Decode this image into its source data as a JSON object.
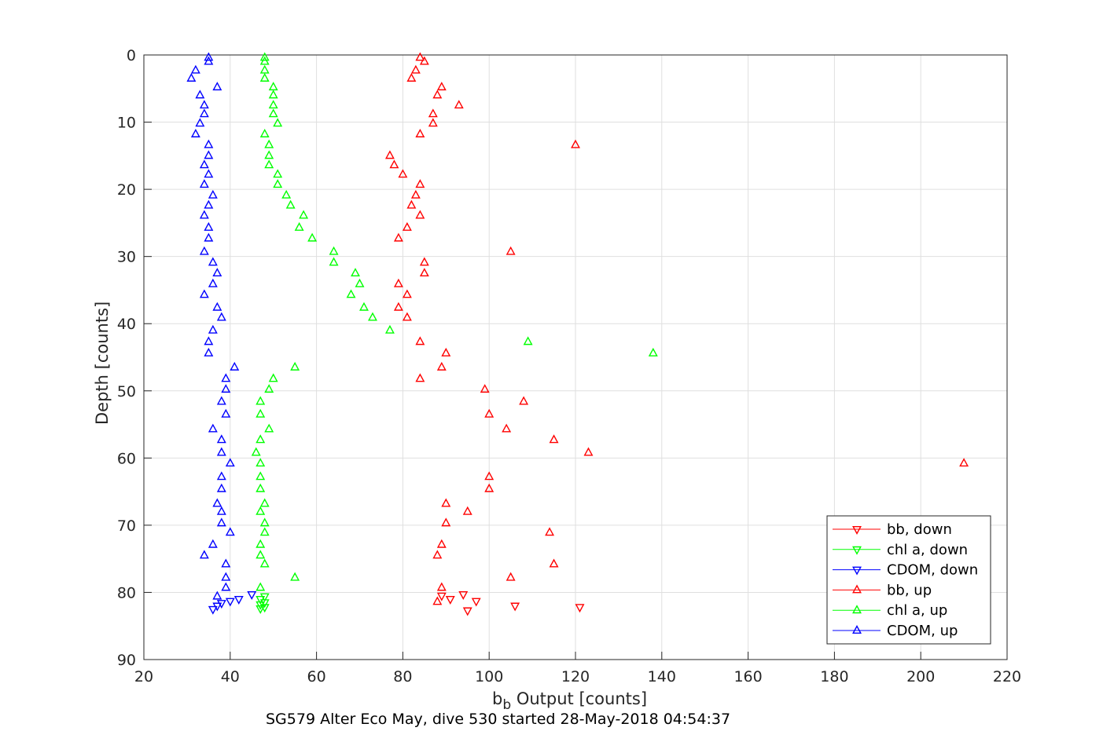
{
  "chart_data": {
    "type": "scatter",
    "title": "",
    "subtitle": "SG579 Alter Eco May, dive 530 started 28-May-2018 04:54:37",
    "xlabel_main": "b",
    "xlabel_sub": "b",
    "xlabel_rest": " Output [counts]",
    "ylabel": "Depth [counts]",
    "xlim": [
      20,
      220
    ],
    "ylim": [
      0,
      90
    ],
    "y_reversed": true,
    "grid": true,
    "legend_position": "lower-right",
    "xticks": [
      20,
      40,
      60,
      80,
      100,
      120,
      140,
      160,
      180,
      200,
      220
    ],
    "yticks": [
      0,
      10,
      20,
      30,
      40,
      50,
      60,
      70,
      80,
      90
    ],
    "series": [
      {
        "name": "bb, down",
        "color": "#ff0000",
        "marker": "triangle-down",
        "points": [
          [
            91,
            81
          ],
          [
            89,
            80.5
          ],
          [
            94,
            80.3
          ],
          [
            97,
            81.3
          ],
          [
            106,
            82
          ],
          [
            121,
            82.2
          ],
          [
            95,
            82.7
          ]
        ]
      },
      {
        "name": "chl a, down",
        "color": "#00ff00",
        "marker": "triangle-down",
        "points": [
          [
            48,
            80.6
          ],
          [
            47,
            81
          ],
          [
            48,
            81.5
          ],
          [
            47,
            81.8
          ],
          [
            48,
            82.2
          ],
          [
            47,
            82.4
          ]
        ]
      },
      {
        "name": "CDOM, down",
        "color": "#0000ff",
        "marker": "triangle-down",
        "points": [
          [
            45,
            80.3
          ],
          [
            42,
            81
          ],
          [
            40,
            81.3
          ],
          [
            38,
            81.6
          ],
          [
            37,
            82
          ],
          [
            36,
            82.5
          ]
        ]
      },
      {
        "name": "bb, up",
        "color": "#ff0000",
        "marker": "triangle-up",
        "points": [
          [
            84,
            0.4
          ],
          [
            85,
            1
          ],
          [
            83,
            2.3
          ],
          [
            82,
            3.5
          ],
          [
            89,
            4.8
          ],
          [
            88,
            6
          ],
          [
            93,
            7.5
          ],
          [
            87,
            8.8
          ],
          [
            87,
            10.2
          ],
          [
            84,
            11.8
          ],
          [
            120,
            13.4
          ],
          [
            77,
            15
          ],
          [
            78,
            16.4
          ],
          [
            80,
            17.8
          ],
          [
            84,
            19.3
          ],
          [
            83,
            20.9
          ],
          [
            82,
            22.4
          ],
          [
            84,
            23.9
          ],
          [
            81,
            25.7
          ],
          [
            79,
            27.3
          ],
          [
            105,
            29.3
          ],
          [
            85,
            30.9
          ],
          [
            85,
            32.5
          ],
          [
            79,
            34.1
          ],
          [
            81,
            35.7
          ],
          [
            79,
            37.6
          ],
          [
            81,
            39.1
          ],
          [
            84,
            42.7
          ],
          [
            90,
            44.4
          ],
          [
            89,
            46.5
          ],
          [
            84,
            48.2
          ],
          [
            99,
            49.8
          ],
          [
            108,
            51.6
          ],
          [
            100,
            53.5
          ],
          [
            104,
            55.7
          ],
          [
            115,
            57.3
          ],
          [
            123,
            59.2
          ],
          [
            210,
            60.8
          ],
          [
            100,
            62.8
          ],
          [
            100,
            64.6
          ],
          [
            90,
            66.8
          ],
          [
            95,
            68
          ],
          [
            90,
            69.7
          ],
          [
            114,
            71.1
          ],
          [
            89,
            72.9
          ],
          [
            88,
            74.5
          ],
          [
            115,
            75.8
          ],
          [
            105,
            77.8
          ],
          [
            89,
            79.3
          ],
          [
            88,
            81.4
          ]
        ]
      },
      {
        "name": "chl a, up",
        "color": "#00ff00",
        "marker": "triangle-up",
        "points": [
          [
            48,
            0.4
          ],
          [
            48,
            1
          ],
          [
            48,
            2.3
          ],
          [
            48,
            3.5
          ],
          [
            50,
            4.8
          ],
          [
            50,
            6
          ],
          [
            50,
            7.5
          ],
          [
            50,
            8.8
          ],
          [
            51,
            10.2
          ],
          [
            48,
            11.8
          ],
          [
            49,
            13.4
          ],
          [
            49,
            15
          ],
          [
            49,
            16.4
          ],
          [
            51,
            17.8
          ],
          [
            51,
            19.3
          ],
          [
            53,
            20.9
          ],
          [
            54,
            22.4
          ],
          [
            57,
            23.9
          ],
          [
            56,
            25.7
          ],
          [
            59,
            27.3
          ],
          [
            64,
            29.3
          ],
          [
            64,
            30.9
          ],
          [
            69,
            32.5
          ],
          [
            70,
            34.1
          ],
          [
            68,
            35.7
          ],
          [
            71,
            37.6
          ],
          [
            73,
            39.1
          ],
          [
            77,
            41
          ],
          [
            109,
            42.7
          ],
          [
            138,
            44.4
          ],
          [
            55,
            46.5
          ],
          [
            50,
            48.2
          ],
          [
            49,
            49.8
          ],
          [
            47,
            51.6
          ],
          [
            47,
            53.5
          ],
          [
            49,
            55.7
          ],
          [
            47,
            57.3
          ],
          [
            46,
            59.2
          ],
          [
            47,
            60.8
          ],
          [
            47,
            62.8
          ],
          [
            47,
            64.6
          ],
          [
            48,
            66.8
          ],
          [
            47,
            68
          ],
          [
            48,
            69.7
          ],
          [
            48,
            71.1
          ],
          [
            47,
            72.9
          ],
          [
            47,
            74.5
          ],
          [
            48,
            75.8
          ],
          [
            55,
            77.8
          ],
          [
            47,
            79.3
          ]
        ]
      },
      {
        "name": "CDOM, up",
        "color": "#0000ff",
        "marker": "triangle-up",
        "points": [
          [
            35,
            0.4
          ],
          [
            35,
            1
          ],
          [
            32,
            2.3
          ],
          [
            31,
            3.5
          ],
          [
            37,
            4.8
          ],
          [
            33,
            6
          ],
          [
            34,
            7.5
          ],
          [
            34,
            8.8
          ],
          [
            33,
            10.2
          ],
          [
            32,
            11.8
          ],
          [
            35,
            13.4
          ],
          [
            35,
            15
          ],
          [
            34,
            16.4
          ],
          [
            35,
            17.8
          ],
          [
            34,
            19.3
          ],
          [
            36,
            20.9
          ],
          [
            35,
            22.4
          ],
          [
            34,
            23.9
          ],
          [
            35,
            25.7
          ],
          [
            35,
            27.3
          ],
          [
            34,
            29.3
          ],
          [
            36,
            30.9
          ],
          [
            37,
            32.5
          ],
          [
            36,
            34.1
          ],
          [
            34,
            35.7
          ],
          [
            37,
            37.6
          ],
          [
            38,
            39.1
          ],
          [
            36,
            41
          ],
          [
            35,
            42.7
          ],
          [
            35,
            44.4
          ],
          [
            41,
            46.5
          ],
          [
            39,
            48.2
          ],
          [
            39,
            49.8
          ],
          [
            38,
            51.6
          ],
          [
            39,
            53.5
          ],
          [
            36,
            55.7
          ],
          [
            38,
            57.3
          ],
          [
            38,
            59.2
          ],
          [
            40,
            60.8
          ],
          [
            38,
            62.8
          ],
          [
            38,
            64.6
          ],
          [
            37,
            66.8
          ],
          [
            38,
            68
          ],
          [
            38,
            69.7
          ],
          [
            40,
            71.1
          ],
          [
            36,
            72.9
          ],
          [
            34,
            74.5
          ],
          [
            39,
            75.8
          ],
          [
            39,
            77.8
          ],
          [
            39,
            79.3
          ],
          [
            37,
            80.6
          ]
        ]
      }
    ]
  }
}
